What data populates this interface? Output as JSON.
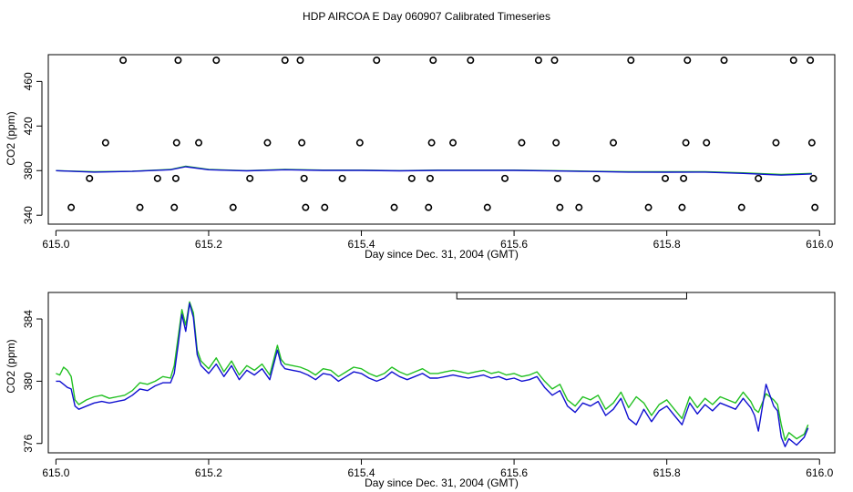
{
  "figure_title": "HDP AIRCOA E  Day 060907  Calibrated Timeseries",
  "colors": {
    "axes": "#000000",
    "green": "#22c022",
    "blue": "#1010d0",
    "points": "#000000"
  },
  "chart_data": [
    {
      "type": "scatter",
      "xlabel": "Day since Dec. 31, 2004 (GMT)",
      "ylabel": "CO2 (ppm)",
      "xlim": [
        614.99,
        616.02
      ],
      "ylim": [
        332,
        484
      ],
      "xticks": [
        615.0,
        615.2,
        615.4,
        615.6,
        615.8,
        616.0
      ],
      "xtick_labels": [
        "615.0",
        "615.2",
        "615.4",
        "615.6",
        "615.8",
        "616.0"
      ],
      "yticks": [
        340,
        380,
        420,
        460
      ],
      "ytick_labels": [
        "340",
        "380",
        "420",
        "460"
      ],
      "series": [
        {
          "name": "green",
          "color": "green",
          "x": [
            615.0,
            615.05,
            615.1,
            615.15,
            615.17,
            615.2,
            615.25,
            615.3,
            615.35,
            615.4,
            615.45,
            615.5,
            615.55,
            615.6,
            615.65,
            615.7,
            615.75,
            615.8,
            615.85,
            615.9,
            615.95,
            615.99
          ],
          "y": [
            380,
            379,
            379.5,
            381,
            384,
            381,
            380,
            381,
            380.5,
            380.5,
            380,
            380.5,
            380.5,
            380.5,
            380,
            379.5,
            379,
            379,
            379,
            378,
            376.5,
            377.5
          ]
        },
        {
          "name": "blue",
          "color": "blue",
          "x": [
            615.0,
            615.05,
            615.1,
            615.15,
            615.17,
            615.2,
            615.25,
            615.3,
            615.35,
            615.4,
            615.45,
            615.5,
            615.55,
            615.6,
            615.65,
            615.7,
            615.75,
            615.8,
            615.85,
            615.9,
            615.95,
            615.99
          ],
          "y": [
            380,
            378.7,
            379.3,
            380.8,
            383.5,
            380.8,
            379.8,
            380.8,
            380.2,
            380.2,
            379.8,
            380.2,
            380.2,
            380.2,
            379.7,
            379.2,
            378.7,
            378.6,
            378.7,
            377.5,
            376,
            377
          ]
        }
      ],
      "points": {
        "x": [
          615.02,
          615.044,
          615.065,
          615.088,
          615.11,
          615.133,
          615.155,
          615.157,
          615.158,
          615.16,
          615.187,
          615.21,
          615.232,
          615.254,
          615.277,
          615.3,
          615.32,
          615.322,
          615.325,
          615.327,
          615.352,
          615.375,
          615.398,
          615.42,
          615.443,
          615.466,
          615.488,
          615.49,
          615.492,
          615.494,
          615.52,
          615.543,
          615.565,
          615.588,
          615.61,
          615.632,
          615.653,
          615.655,
          615.657,
          615.66,
          615.685,
          615.708,
          615.73,
          615.753,
          615.776,
          615.798,
          615.82,
          615.822,
          615.825,
          615.827,
          615.852,
          615.875,
          615.898,
          615.92,
          615.943,
          615.966,
          615.988,
          615.99,
          615.992,
          615.994
        ],
        "y": [
          347,
          373,
          405,
          479,
          347,
          373,
          347,
          373,
          405,
          479,
          405,
          479,
          347,
          373,
          405,
          479,
          479,
          405,
          373,
          347,
          347,
          373,
          405,
          479,
          347,
          373,
          347,
          373,
          405,
          479,
          405,
          479,
          347,
          373,
          405,
          479,
          479,
          405,
          373,
          347,
          347,
          373,
          405,
          479,
          347,
          373,
          347,
          373,
          405,
          479,
          405,
          479,
          347,
          373,
          405,
          479,
          479,
          405,
          373,
          347
        ]
      }
    },
    {
      "type": "line",
      "xlabel": "Day since Dec. 31, 2004 (GMT)",
      "ylabel": "CO2 (ppm)",
      "xlim": [
        614.99,
        616.02
      ],
      "ylim": [
        375.4,
        385.7
      ],
      "xticks": [
        615.0,
        615.2,
        615.4,
        615.6,
        615.8,
        616.0
      ],
      "xtick_labels": [
        "615.0",
        "615.2",
        "615.4",
        "615.6",
        "615.8",
        "616.0"
      ],
      "yticks": [
        376,
        380,
        384
      ],
      "ytick_labels": [
        "376",
        "380",
        "384"
      ],
      "legend": {
        "placement": "top-right",
        "x_from": 615.525,
        "x_to": 615.826
      },
      "series": [
        {
          "name": "green",
          "color": "green",
          "x": [
            615.0,
            615.005,
            615.01,
            615.015,
            615.02,
            615.025,
            615.03,
            615.04,
            615.05,
            615.06,
            615.07,
            615.08,
            615.09,
            615.1,
            615.11,
            615.12,
            615.13,
            615.14,
            615.15,
            615.155,
            615.16,
            615.165,
            615.17,
            615.175,
            615.18,
            615.185,
            615.19,
            615.2,
            615.21,
            615.22,
            615.23,
            615.24,
            615.25,
            615.26,
            615.27,
            615.28,
            615.29,
            615.295,
            615.3,
            615.31,
            615.32,
            615.33,
            615.34,
            615.35,
            615.36,
            615.37,
            615.38,
            615.39,
            615.4,
            615.41,
            615.42,
            615.43,
            615.44,
            615.45,
            615.46,
            615.47,
            615.48,
            615.49,
            615.5,
            615.51,
            615.52,
            615.53,
            615.54,
            615.55,
            615.56,
            615.57,
            615.58,
            615.59,
            615.6,
            615.61,
            615.62,
            615.63,
            615.64,
            615.65,
            615.66,
            615.67,
            615.68,
            615.69,
            615.7,
            615.71,
            615.72,
            615.73,
            615.74,
            615.75,
            615.76,
            615.77,
            615.78,
            615.79,
            615.8,
            615.81,
            615.82,
            615.83,
            615.84,
            615.85,
            615.86,
            615.87,
            615.88,
            615.89,
            615.9,
            615.905,
            615.91,
            615.915,
            615.92,
            615.93,
            615.94,
            615.945,
            615.95,
            615.955,
            615.96,
            615.97,
            615.98,
            615.985
          ],
          "y": [
            380.5,
            380.4,
            380.9,
            380.7,
            380.3,
            378.8,
            378.5,
            378.8,
            379.0,
            379.1,
            378.9,
            379.0,
            379.1,
            379.4,
            379.9,
            379.8,
            380.0,
            380.3,
            380.2,
            381.0,
            382.8,
            384.6,
            383.6,
            385.1,
            384.4,
            382.0,
            381.3,
            380.8,
            381.5,
            380.6,
            381.3,
            380.4,
            381.0,
            380.7,
            381.1,
            380.4,
            382.3,
            381.4,
            381.1,
            381.0,
            380.9,
            380.7,
            380.4,
            380.8,
            380.7,
            380.3,
            380.6,
            380.9,
            380.8,
            380.5,
            380.3,
            380.5,
            380.9,
            380.6,
            380.4,
            380.6,
            380.8,
            380.5,
            380.5,
            380.6,
            380.7,
            380.6,
            380.5,
            380.6,
            380.7,
            380.5,
            380.6,
            380.4,
            380.5,
            380.3,
            380.4,
            380.6,
            380.0,
            379.5,
            379.8,
            378.8,
            378.4,
            379.0,
            378.8,
            379.1,
            378.2,
            378.6,
            379.3,
            378.3,
            379.0,
            378.6,
            377.8,
            378.5,
            378.8,
            378.2,
            377.6,
            379.0,
            378.3,
            378.9,
            378.5,
            379.0,
            378.8,
            378.6,
            379.3,
            379.0,
            378.7,
            378.2,
            378.0,
            379.2,
            378.8,
            378.5,
            377.2,
            376.2,
            376.7,
            376.3,
            376.6,
            377.2
          ]
        },
        {
          "name": "blue",
          "color": "blue",
          "x": [
            615.0,
            615.005,
            615.01,
            615.015,
            615.02,
            615.025,
            615.03,
            615.04,
            615.05,
            615.06,
            615.07,
            615.08,
            615.09,
            615.1,
            615.11,
            615.12,
            615.13,
            615.14,
            615.15,
            615.155,
            615.16,
            615.165,
            615.17,
            615.175,
            615.18,
            615.185,
            615.19,
            615.2,
            615.21,
            615.22,
            615.23,
            615.24,
            615.25,
            615.26,
            615.27,
            615.28,
            615.29,
            615.295,
            615.3,
            615.31,
            615.32,
            615.33,
            615.34,
            615.35,
            615.36,
            615.37,
            615.38,
            615.39,
            615.4,
            615.41,
            615.42,
            615.43,
            615.44,
            615.45,
            615.46,
            615.47,
            615.48,
            615.49,
            615.5,
            615.51,
            615.52,
            615.53,
            615.54,
            615.55,
            615.56,
            615.57,
            615.58,
            615.59,
            615.6,
            615.61,
            615.62,
            615.63,
            615.64,
            615.65,
            615.66,
            615.67,
            615.68,
            615.69,
            615.7,
            615.71,
            615.72,
            615.73,
            615.74,
            615.75,
            615.76,
            615.77,
            615.78,
            615.79,
            615.8,
            615.81,
            615.82,
            615.83,
            615.84,
            615.85,
            615.86,
            615.87,
            615.88,
            615.89,
            615.9,
            615.905,
            615.91,
            615.915,
            615.92,
            615.93,
            615.94,
            615.945,
            615.95,
            615.955,
            615.96,
            615.97,
            615.98,
            615.985
          ],
          "y": [
            380.0,
            380.0,
            379.8,
            379.6,
            379.5,
            378.4,
            378.2,
            378.4,
            378.6,
            378.7,
            378.6,
            378.7,
            378.8,
            379.1,
            379.5,
            379.4,
            379.7,
            379.9,
            379.9,
            380.5,
            382.3,
            384.3,
            383.2,
            385.0,
            384.1,
            381.7,
            381.0,
            380.5,
            381.1,
            380.3,
            381.0,
            380.1,
            380.7,
            380.4,
            380.8,
            380.1,
            382.0,
            381.1,
            380.8,
            380.7,
            380.6,
            380.4,
            380.1,
            380.5,
            380.4,
            380.0,
            380.3,
            380.6,
            380.5,
            380.2,
            380.0,
            380.2,
            380.6,
            380.3,
            380.1,
            380.3,
            380.5,
            380.2,
            380.2,
            380.3,
            380.4,
            380.3,
            380.2,
            380.3,
            380.4,
            380.2,
            380.3,
            380.1,
            380.2,
            380.0,
            380.1,
            380.3,
            379.6,
            379.1,
            379.4,
            378.4,
            378.0,
            378.6,
            378.4,
            378.7,
            377.8,
            378.2,
            378.9,
            377.6,
            377.2,
            378.2,
            377.4,
            378.1,
            378.4,
            377.8,
            377.2,
            378.6,
            377.9,
            378.5,
            378.1,
            378.6,
            378.4,
            378.2,
            378.9,
            378.6,
            378.3,
            377.8,
            376.8,
            379.8,
            378.4,
            378.1,
            376.4,
            375.8,
            376.3,
            375.9,
            376.4,
            377.0
          ]
        }
      ]
    }
  ]
}
